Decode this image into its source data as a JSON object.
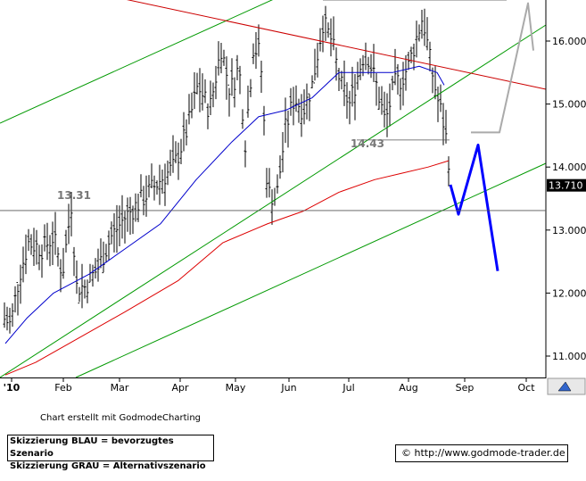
{
  "chart_data": {
    "type": "candlestick",
    "x_ticks": [
      "'10",
      "Feb",
      "Mar",
      "Apr",
      "May",
      "Jun",
      "Jul",
      "Aug",
      "Sep",
      "Oct"
    ],
    "y_ticks": [
      "11.000",
      "12.000",
      "13.000",
      "14.000",
      "15.000",
      "16.000"
    ],
    "ylim": [
      10.5,
      16.8
    ],
    "last_price_label": "13.710",
    "annotations": [
      {
        "text": "13.31",
        "level": 13.31
      },
      {
        "text": "14.43",
        "level": 14.43
      }
    ],
    "horizontal_levels": [
      13.31,
      14.43,
      16.65
    ],
    "colors": {
      "price": "#000000",
      "ma_blue": "#0000cc",
      "ma_red": "#dd0000",
      "trend_green": "#009900",
      "trend_red": "#cc0000",
      "scenario_blue": "#0000ff",
      "scenario_gray": "#aaaaaa"
    }
  },
  "credit_text": "Chart erstellt mit GodmodeCharting",
  "legend": {
    "line1": "Skizzierung BLAU = bevorzugtes Szenario",
    "line2": "Skizzierung GRAU = Alternativszenario"
  },
  "url_text": "© http://www.godmode-trader.de",
  "scroll_icon": "mountain-arrow-icon"
}
